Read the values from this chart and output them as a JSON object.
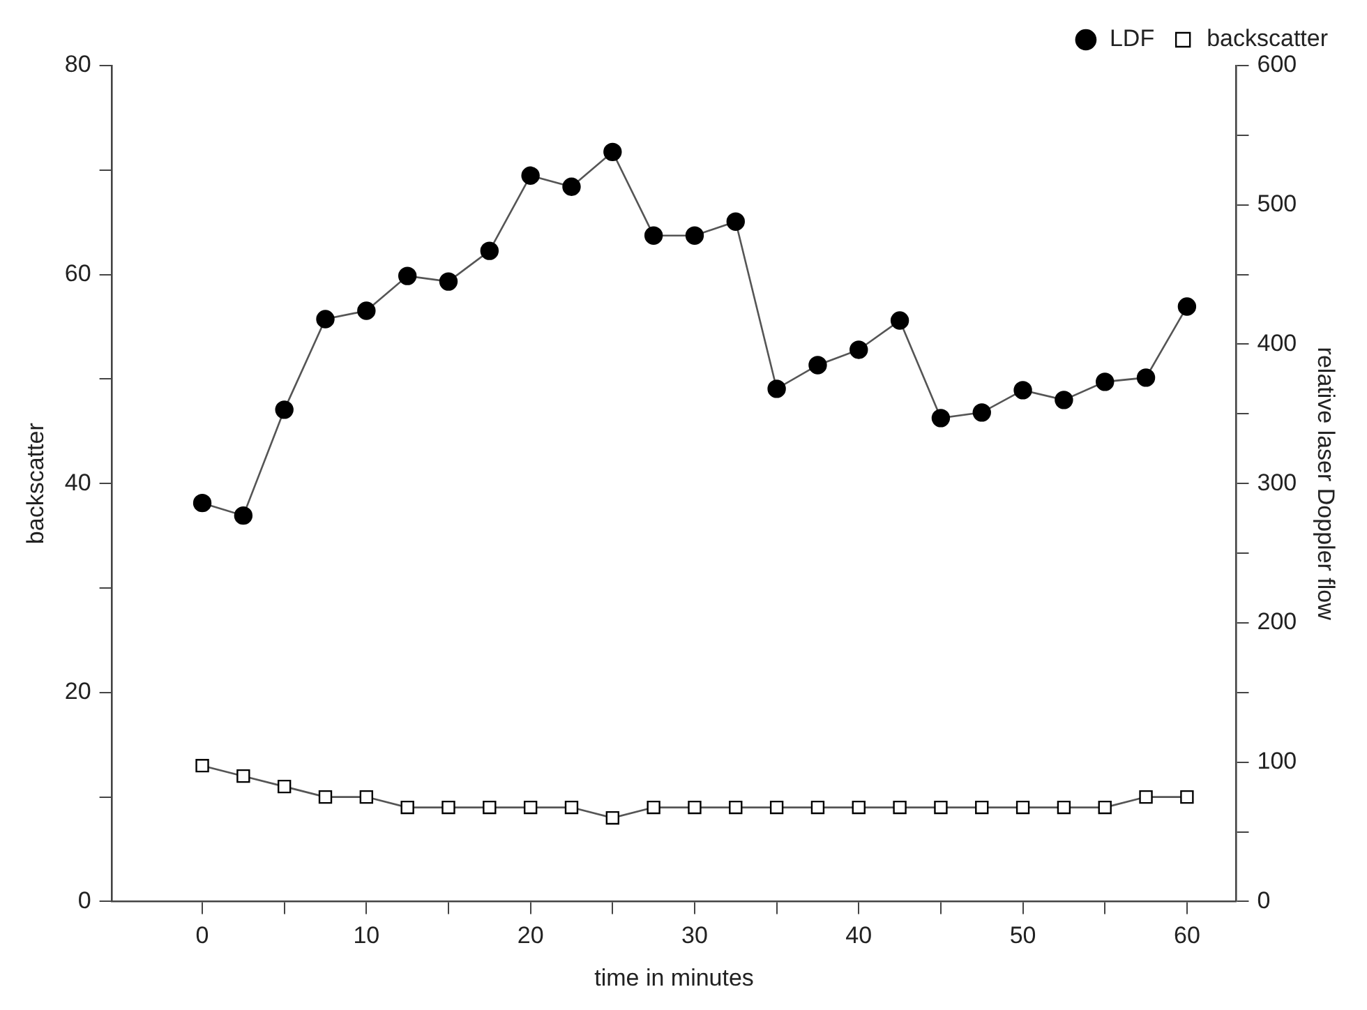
{
  "chart_data": {
    "type": "line",
    "xlabel": "time in minutes",
    "ylabel": "backscatter",
    "y2label": "relative laser Doppler flow",
    "x": [
      0,
      2.5,
      5,
      7.5,
      10,
      12.5,
      15,
      17.5,
      20,
      22.5,
      25,
      27.5,
      30,
      32.5,
      35,
      37.5,
      40,
      42.5,
      45,
      47.5,
      50,
      52.5,
      55,
      57.5,
      60
    ],
    "series": [
      {
        "name": "LDF",
        "color": "#000000",
        "marker": "circle",
        "axis": "y2",
        "values": [
          286,
          277,
          353,
          418,
          424,
          449,
          445,
          467,
          521,
          513,
          538,
          478,
          478,
          488,
          368,
          385,
          396,
          417,
          347,
          351,
          367,
          360,
          373,
          376,
          427
        ]
      },
      {
        "name": "backscatter",
        "color": "#000000",
        "marker": "square",
        "values": [
          13,
          12,
          11,
          10,
          10,
          9,
          9,
          9,
          9,
          9,
          8,
          9,
          9,
          9,
          9,
          9,
          9,
          9,
          9,
          9,
          9,
          9,
          9,
          10,
          10
        ]
      }
    ],
    "xlim": [
      -5.5,
      63
    ],
    "xticks": [
      0,
      {
        "value": 5,
        "label": null
      },
      10,
      {
        "value": 15,
        "label": null
      },
      20,
      {
        "value": 25,
        "label": null
      },
      30,
      {
        "value": 35,
        "label": null
      },
      40,
      {
        "value": 45,
        "label": null
      },
      50,
      {
        "value": 55,
        "label": null
      },
      60
    ],
    "ylim": [
      0,
      80
    ],
    "yticks": [
      0,
      {
        "value": 10,
        "label": null
      },
      20,
      {
        "value": 30,
        "label": null
      },
      40,
      {
        "value": 50,
        "label": null
      },
      60,
      {
        "value": 70,
        "label": null
      },
      80
    ],
    "y2lim": [
      0,
      600
    ],
    "y2ticks": [
      0,
      {
        "value": 50,
        "label": null
      },
      100,
      {
        "value": 150,
        "label": null
      },
      200,
      {
        "value": 250,
        "label": null
      },
      300,
      {
        "value": 350,
        "label": null
      },
      400,
      {
        "value": 450,
        "label": null
      },
      500,
      {
        "value": 550,
        "label": null
      },
      600
    ],
    "grid": false,
    "legend": "top right",
    "line_style": "solid"
  }
}
